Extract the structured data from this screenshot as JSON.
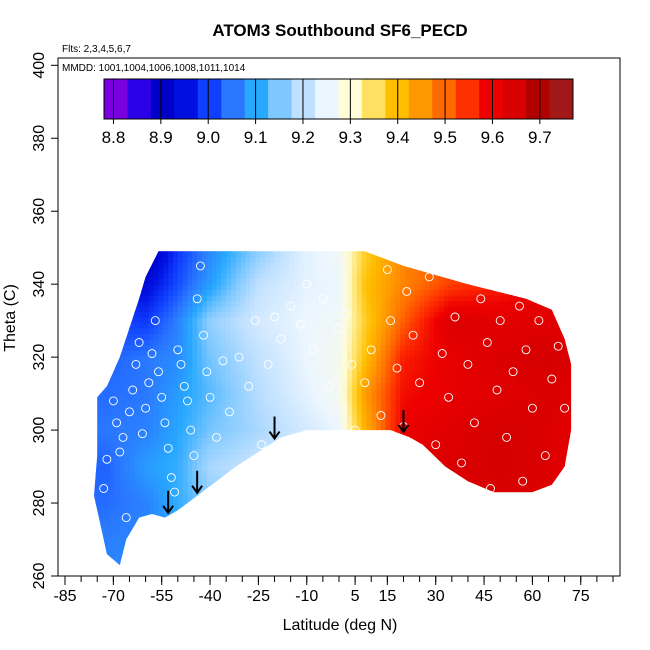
{
  "chart_data": {
    "type": "heatmap",
    "title": "ATOM3 Southbound SF6_PECD",
    "subtitle_flights": "Flts: 2,3,4,5,6,7",
    "subtitle_dates": "MMDD: 1001,1004,1006,1008,1011,1014",
    "xlabel": "Latitude (deg N)",
    "ylabel": "Theta (C)",
    "xlim": [
      -85,
      85
    ],
    "ylim": [
      260,
      402
    ],
    "x_ticks": [
      "-85",
      "-70",
      "-55",
      "-40",
      "-25",
      "-10",
      "5",
      "15",
      "30",
      "45",
      "60",
      "75"
    ],
    "y_ticks": [
      "260",
      "280",
      "300",
      "320",
      "340",
      "360",
      "380",
      "400"
    ],
    "colorbar": {
      "range": [
        8.78,
        9.77
      ],
      "ticks": [
        "8.8",
        "8.9",
        "9.0",
        "9.1",
        "9.2",
        "9.3",
        "9.4",
        "9.5",
        "9.6",
        "9.7"
      ],
      "colors": [
        "#7a00e0",
        "#2a00e8",
        "#0000c8",
        "#0010e0",
        "#1040ff",
        "#2a78ff",
        "#28a8ff",
        "#7ec8ff",
        "#bfe0ff",
        "#ecf6ff",
        "#fffcd8",
        "#ffe060",
        "#ffbe00",
        "#ff9800",
        "#ff6a00",
        "#ff3000",
        "#ee0000",
        "#d80000",
        "#b00000",
        "#a01818"
      ]
    },
    "field": {
      "latitude": [
        -72,
        -60,
        -50,
        -40,
        -25,
        -10,
        0,
        8,
        20,
        35,
        50,
        65,
        72
      ],
      "theta": [
        268,
        280,
        290,
        300,
        310,
        320,
        330,
        340,
        348
      ],
      "values": [
        [
          9.05,
          9.06,
          9.08,
          9.12,
          9.16,
          9.2,
          9.24,
          9.4,
          9.62,
          9.62,
          9.65,
          9.62,
          9.6
        ],
        [
          9.03,
          9.05,
          9.1,
          9.15,
          9.18,
          9.22,
          9.26,
          9.4,
          9.63,
          9.64,
          9.66,
          9.65,
          9.62
        ],
        [
          9.02,
          9.08,
          9.1,
          9.18,
          9.21,
          9.23,
          9.26,
          9.45,
          9.64,
          9.66,
          9.67,
          9.66,
          9.64
        ],
        [
          9.04,
          9.05,
          9.09,
          9.14,
          9.18,
          9.22,
          9.25,
          9.42,
          9.62,
          9.65,
          9.67,
          9.66,
          9.64
        ],
        [
          9.03,
          9.04,
          9.08,
          9.12,
          9.19,
          9.24,
          9.27,
          9.45,
          9.6,
          9.63,
          9.65,
          9.66,
          9.65
        ],
        [
          9.02,
          9.04,
          9.06,
          9.14,
          9.2,
          9.25,
          9.27,
          9.4,
          9.58,
          9.63,
          9.66,
          9.67,
          9.66
        ],
        [
          9.0,
          8.98,
          9.05,
          9.16,
          9.22,
          9.25,
          9.26,
          9.38,
          9.52,
          9.66,
          9.64,
          9.65,
          9.64
        ],
        [
          8.95,
          8.92,
          9.0,
          9.08,
          9.2,
          9.24,
          9.25,
          9.4,
          9.48,
          9.55,
          9.58,
          9.62,
          9.62
        ],
        [
          8.88,
          8.86,
          8.98,
          9.06,
          9.16,
          9.24,
          9.26,
          9.38,
          9.48,
          9.52,
          9.56,
          9.58,
          9.58
        ]
      ]
    },
    "data_region_outline": [
      [
        -75,
        293
      ],
      [
        -75,
        309
      ],
      [
        -72,
        312
      ],
      [
        -70,
        316
      ],
      [
        -68,
        320
      ],
      [
        -65,
        328
      ],
      [
        -62,
        336
      ],
      [
        -60,
        342
      ],
      [
        -56,
        349
      ],
      [
        -30,
        349
      ],
      [
        -15,
        349
      ],
      [
        0,
        349
      ],
      [
        8,
        349
      ],
      [
        20,
        345
      ],
      [
        40,
        340
      ],
      [
        58,
        336
      ],
      [
        66,
        333
      ],
      [
        70,
        325
      ],
      [
        72,
        318
      ],
      [
        72,
        300
      ],
      [
        70,
        290
      ],
      [
        66,
        285
      ],
      [
        60,
        283
      ],
      [
        48,
        283
      ],
      [
        40,
        286
      ],
      [
        33,
        290
      ],
      [
        26,
        296
      ],
      [
        22,
        298
      ],
      [
        16,
        300
      ],
      [
        4,
        300
      ],
      [
        -10,
        300
      ],
      [
        -18,
        298
      ],
      [
        -25,
        294
      ],
      [
        -32,
        290
      ],
      [
        -38,
        286
      ],
      [
        -44,
        282
      ],
      [
        -50,
        278
      ],
      [
        -54,
        276
      ],
      [
        -58,
        277
      ],
      [
        -62,
        276
      ],
      [
        -66,
        270
      ],
      [
        -68,
        263
      ],
      [
        -72,
        266
      ],
      [
        -74,
        274
      ],
      [
        -76,
        282
      ]
    ],
    "observations": [
      [
        -73,
        284
      ],
      [
        -72,
        292
      ],
      [
        -70,
        308
      ],
      [
        -69,
        302
      ],
      [
        -68,
        294
      ],
      [
        -67,
        298
      ],
      [
        -66,
        276
      ],
      [
        -65,
        305
      ],
      [
        -64,
        311
      ],
      [
        -63,
        318
      ],
      [
        -62,
        324
      ],
      [
        -61,
        299
      ],
      [
        -60,
        306
      ],
      [
        -59,
        313
      ],
      [
        -58,
        321
      ],
      [
        -57,
        330
      ],
      [
        -56,
        316
      ],
      [
        -55,
        309
      ],
      [
        -54,
        302
      ],
      [
        -53,
        295
      ],
      [
        -52,
        287
      ],
      [
        -51,
        283
      ],
      [
        -50,
        322
      ],
      [
        -49,
        318
      ],
      [
        -48,
        312
      ],
      [
        -47,
        308
      ],
      [
        -46,
        300
      ],
      [
        -45,
        293
      ],
      [
        -44,
        336
      ],
      [
        -43,
        345
      ],
      [
        -42,
        326
      ],
      [
        -41,
        316
      ],
      [
        -40,
        309
      ],
      [
        -38,
        298
      ],
      [
        -36,
        319
      ],
      [
        -34,
        305
      ],
      [
        -31,
        320
      ],
      [
        -28,
        312
      ],
      [
        -26,
        330
      ],
      [
        -24,
        296
      ],
      [
        -22,
        318
      ],
      [
        -20,
        331
      ],
      [
        -18,
        325
      ],
      [
        -15,
        334
      ],
      [
        -12,
        329
      ],
      [
        -10,
        340
      ],
      [
        -8,
        322
      ],
      [
        -5,
        336
      ],
      [
        -3,
        312
      ],
      [
        0,
        328
      ],
      [
        2,
        332
      ],
      [
        4,
        318
      ],
      [
        5,
        300
      ],
      [
        8,
        313
      ],
      [
        10,
        322
      ],
      [
        13,
        304
      ],
      [
        15,
        344
      ],
      [
        16,
        330
      ],
      [
        18,
        317
      ],
      [
        20,
        301
      ],
      [
        21,
        338
      ],
      [
        23,
        326
      ],
      [
        25,
        313
      ],
      [
        28,
        342
      ],
      [
        30,
        296
      ],
      [
        32,
        321
      ],
      [
        34,
        309
      ],
      [
        36,
        331
      ],
      [
        38,
        291
      ],
      [
        40,
        318
      ],
      [
        42,
        302
      ],
      [
        44,
        336
      ],
      [
        46,
        324
      ],
      [
        47,
        284
      ],
      [
        49,
        311
      ],
      [
        50,
        330
      ],
      [
        52,
        298
      ],
      [
        54,
        316
      ],
      [
        56,
        334
      ],
      [
        57,
        286
      ],
      [
        58,
        322
      ],
      [
        60,
        306
      ],
      [
        62,
        330
      ],
      [
        64,
        293
      ],
      [
        66,
        314
      ],
      [
        68,
        323
      ],
      [
        70,
        306
      ],
      [
        71,
        287
      ]
    ],
    "arrows_latitude": [
      -53,
      -44,
      -20,
      20
    ]
  }
}
